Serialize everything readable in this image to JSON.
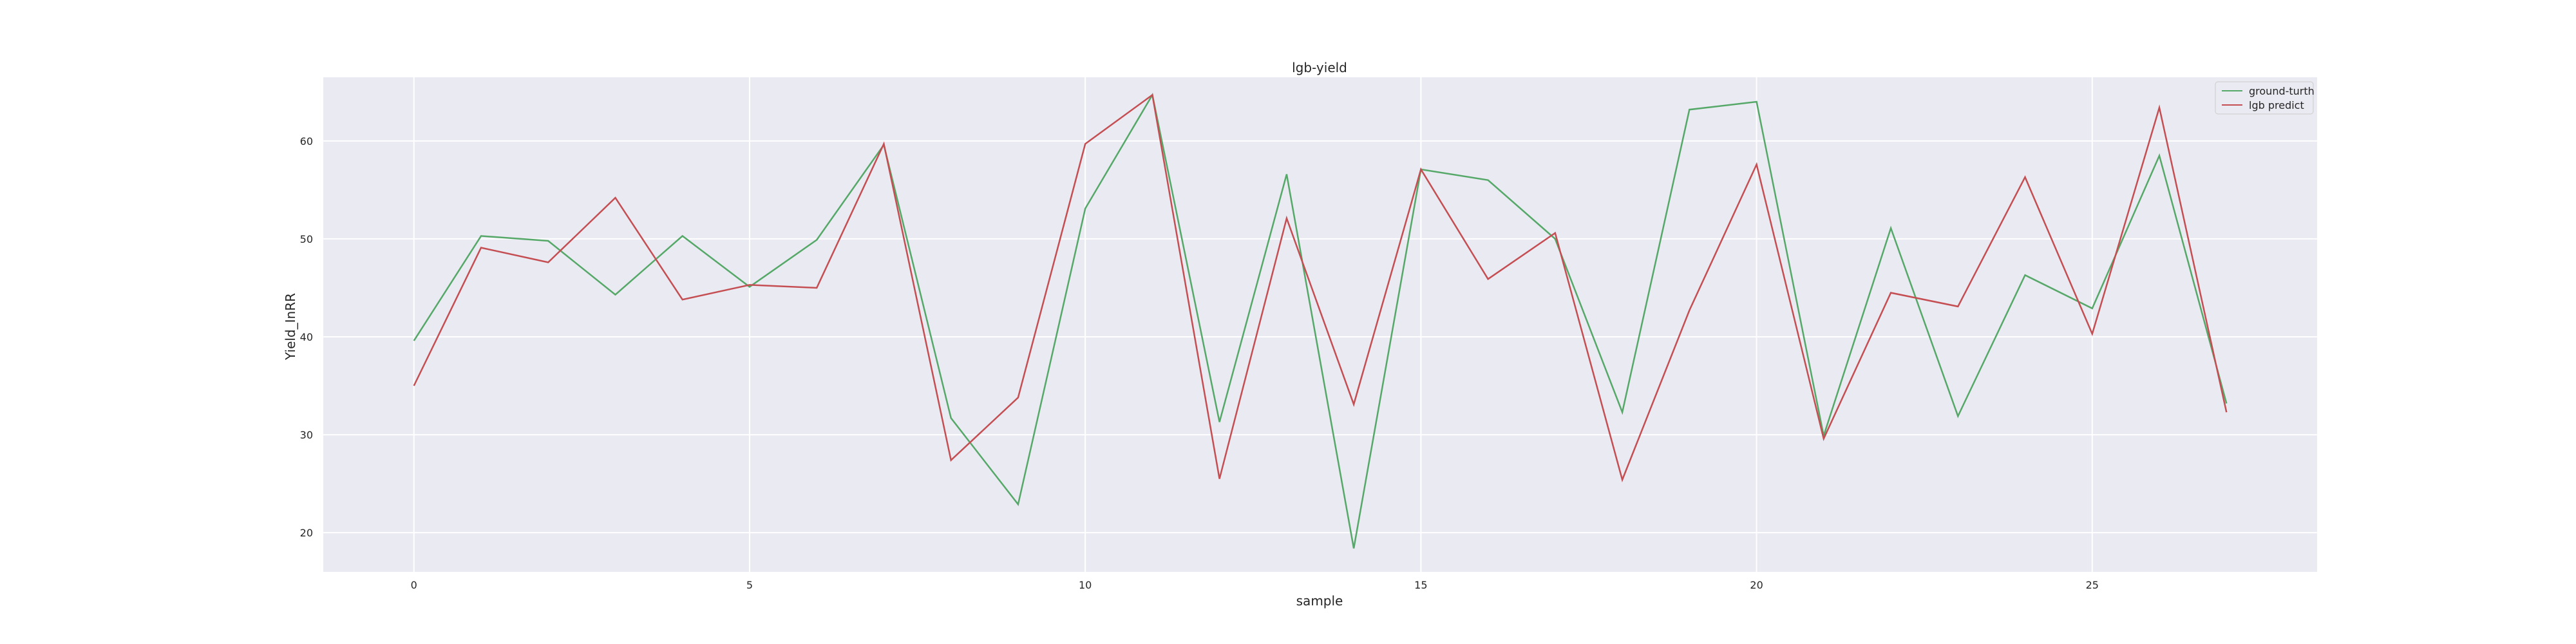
{
  "chart_data": {
    "type": "line",
    "title": "lgb-yield",
    "xlabel": "sample",
    "ylabel": "Yield_InRR",
    "xlim": [
      -1.35,
      28.35
    ],
    "ylim": [
      16,
      66.5
    ],
    "xticks": [
      0,
      5,
      10,
      15,
      20,
      25
    ],
    "yticks": [
      20,
      30,
      40,
      50,
      60
    ],
    "grid": true,
    "legend_position": "top-right",
    "background": "#EAEAF2",
    "x": [
      0,
      1,
      2,
      3,
      4,
      5,
      6,
      7,
      8,
      9,
      10,
      11,
      12,
      13,
      14,
      15,
      16,
      17,
      18,
      19,
      20,
      21,
      22,
      23,
      24,
      25,
      26,
      27
    ],
    "series": [
      {
        "name": "ground-turth",
        "color": "#55A868",
        "values": [
          39.6,
          50.3,
          49.8,
          44.3,
          50.3,
          45.1,
          49.9,
          59.6,
          31.7,
          22.9,
          53.1,
          64.7,
          31.3,
          56.6,
          18.4,
          57.1,
          56.0,
          50.0,
          32.3,
          63.2,
          64.0,
          29.9,
          51.1,
          31.9,
          46.3,
          42.9,
          58.5,
          33.2
        ]
      },
      {
        "name": "lgb predict",
        "color": "#C44E52",
        "values": [
          35.0,
          49.1,
          47.6,
          54.2,
          43.8,
          45.3,
          45.0,
          59.7,
          27.4,
          33.8,
          59.7,
          64.7,
          25.5,
          52.1,
          33.1,
          57.1,
          45.9,
          50.6,
          25.4,
          42.7,
          57.6,
          29.6,
          44.5,
          43.1,
          56.3,
          40.3,
          63.4,
          32.3
        ]
      }
    ]
  }
}
